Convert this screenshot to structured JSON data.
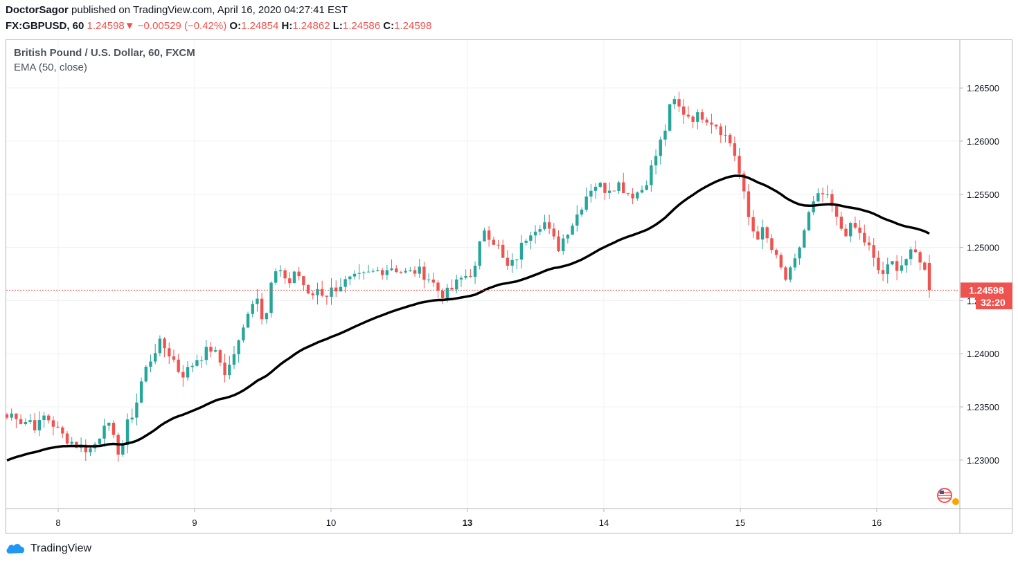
{
  "header": {
    "author": "DoctorSagor",
    "published_text": "published on TradingView.com, April 16, 2020 04:27:41 EST",
    "symbol": "FX:GBPUSD, 60",
    "last": "1.24598",
    "change_arrow": "▼",
    "change": "−0.00529 (−0.42%)",
    "o_label": "O:",
    "o_value": "1.24854",
    "h_label": "H:",
    "h_value": "1.24862",
    "l_label": "L:",
    "l_value": "1.24586",
    "c_label": "C:",
    "c_value": "1.24598"
  },
  "legend": {
    "title": "British Pound / U.S. Dollar, 60, FXCM",
    "indicator": "EMA (50, close)"
  },
  "footer": {
    "brand": "TradingView"
  },
  "colors": {
    "up": "#26a69a",
    "down": "#ef5350",
    "ema": "#000000",
    "grid": "#eef0f3",
    "price_line": "#ef5350"
  },
  "chart_data": {
    "type": "candlestick",
    "title": "British Pound / U.S. Dollar, 60, FXCM",
    "ylim": [
      1.2255,
      1.2695
    ],
    "y_ticks": [
      "1.23000",
      "1.23500",
      "1.24000",
      "1.24500",
      "1.25000",
      "1.25500",
      "1.26000",
      "1.26500"
    ],
    "x_ticks": [
      {
        "label": "8",
        "bold": false
      },
      {
        "label": "9",
        "bold": false
      },
      {
        "label": "10",
        "bold": false
      },
      {
        "label": "13",
        "bold": true
      },
      {
        "label": "14",
        "bold": false
      },
      {
        "label": "15",
        "bold": false
      },
      {
        "label": "16",
        "bold": false
      }
    ],
    "last_price": 1.24598,
    "last_price_label": "1.24598",
    "countdown_label": "32:20",
    "ema_period": 50,
    "ema_name": "EMA (50, close)",
    "close_path": [
      1.234,
      1.2345,
      1.2335,
      1.2338,
      1.233,
      1.2342,
      1.2335,
      1.2325,
      1.232,
      1.2315,
      1.2312,
      1.231,
      1.2318,
      1.234,
      1.232,
      1.2305,
      1.2335,
      1.235,
      1.238,
      1.2395,
      1.241,
      1.2405,
      1.2395,
      1.238,
      1.2385,
      1.2395,
      1.24,
      1.2405,
      1.2395,
      1.238,
      1.24,
      1.2415,
      1.2445,
      1.2455,
      1.243,
      1.247,
      1.248,
      1.2462,
      1.2478,
      1.247,
      1.245,
      1.2462,
      1.2455,
      1.246,
      1.2465,
      1.2468,
      1.247,
      1.2472,
      1.2475,
      1.2478,
      1.248,
      1.2482,
      1.2478,
      1.2475,
      1.2478,
      1.2476,
      1.247,
      1.246,
      1.2455,
      1.2462,
      1.247,
      1.2475,
      1.248,
      1.252,
      1.251,
      1.25,
      1.248,
      1.2485,
      1.25,
      1.2515,
      1.252,
      1.2525,
      1.251,
      1.25,
      1.2515,
      1.2525,
      1.254,
      1.2555,
      1.256,
      1.2555,
      1.2558,
      1.256,
      1.2552,
      1.255,
      1.2555,
      1.257,
      1.259,
      1.261,
      1.264,
      1.263,
      1.2625,
      1.2622,
      1.2625,
      1.262,
      1.2615,
      1.2605,
      1.2595,
      1.2565,
      1.253,
      1.251,
      1.2515,
      1.25,
      1.2485,
      1.247,
      1.248,
      1.2505,
      1.253,
      1.2545,
      1.255,
      1.254,
      1.252,
      1.2515,
      1.252,
      1.251,
      1.25,
      1.248,
      1.2475,
      1.2485,
      1.2482,
      1.249,
      1.2495,
      1.2488,
      1.24598
    ]
  }
}
